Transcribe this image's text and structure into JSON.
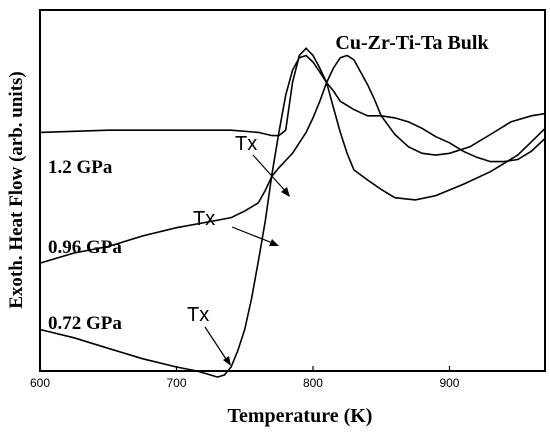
{
  "chart_data": {
    "type": "line",
    "title": "Cu-Zr-Ti-Ta  Bulk",
    "xlabel": "Temperature (K)",
    "ylabel": "Exoth. Heat Flow (arb. units)",
    "xlim": [
      600,
      970
    ],
    "ylim": [
      0,
      1
    ],
    "x_ticks": [
      "600",
      "700",
      "800",
      "900"
    ],
    "y_ticks_shown": false,
    "grid": false,
    "legend": "none",
    "series": [
      {
        "name": "1.2 GPa",
        "points": [
          [
            600,
            0.661
          ],
          [
            650,
            0.667
          ],
          [
            700,
            0.667
          ],
          [
            740,
            0.667
          ],
          [
            760,
            0.661
          ],
          [
            770,
            0.652
          ],
          [
            775,
            0.652
          ],
          [
            780,
            0.667
          ],
          [
            785,
            0.799
          ],
          [
            790,
            0.874
          ],
          [
            795,
            0.894
          ],
          [
            800,
            0.874
          ],
          [
            805,
            0.839
          ],
          [
            810,
            0.799
          ],
          [
            815,
            0.73
          ],
          [
            820,
            0.661
          ],
          [
            825,
            0.603
          ],
          [
            830,
            0.557
          ],
          [
            840,
            0.529
          ],
          [
            850,
            0.503
          ],
          [
            860,
            0.48
          ],
          [
            875,
            0.474
          ],
          [
            890,
            0.486
          ],
          [
            910,
            0.517
          ],
          [
            930,
            0.552
          ],
          [
            950,
            0.598
          ],
          [
            960,
            0.635
          ],
          [
            970,
            0.672
          ]
        ]
      },
      {
        "name": "0.96 GPa",
        "points": [
          [
            600,
            0.299
          ],
          [
            625,
            0.327
          ],
          [
            650,
            0.345
          ],
          [
            675,
            0.374
          ],
          [
            700,
            0.397
          ],
          [
            725,
            0.414
          ],
          [
            740,
            0.425
          ],
          [
            750,
            0.443
          ],
          [
            760,
            0.466
          ],
          [
            765,
            0.5
          ],
          [
            770,
            0.54
          ],
          [
            775,
            0.563
          ],
          [
            780,
            0.583
          ],
          [
            785,
            0.603
          ],
          [
            790,
            0.632
          ],
          [
            795,
            0.661
          ],
          [
            800,
            0.701
          ],
          [
            805,
            0.747
          ],
          [
            810,
            0.799
          ],
          [
            815,
            0.839
          ],
          [
            820,
            0.868
          ],
          [
            825,
            0.874
          ],
          [
            830,
            0.862
          ],
          [
            835,
            0.828
          ],
          [
            840,
            0.793
          ],
          [
            845,
            0.753
          ],
          [
            850,
            0.707
          ],
          [
            860,
            0.655
          ],
          [
            870,
            0.621
          ],
          [
            880,
            0.603
          ],
          [
            890,
            0.598
          ],
          [
            900,
            0.603
          ],
          [
            915,
            0.621
          ],
          [
            930,
            0.655
          ],
          [
            945,
            0.69
          ],
          [
            960,
            0.707
          ],
          [
            970,
            0.713
          ]
        ]
      },
      {
        "name": "0.72 GPa",
        "points": [
          [
            600,
            0.115
          ],
          [
            625,
            0.092
          ],
          [
            650,
            0.063
          ],
          [
            675,
            0.034
          ],
          [
            700,
            0.011
          ],
          [
            715,
            0.0
          ],
          [
            725,
            -0.011
          ],
          [
            730,
            -0.017
          ],
          [
            735,
            -0.011
          ],
          [
            740,
            0.011
          ],
          [
            745,
            0.057
          ],
          [
            750,
            0.115
          ],
          [
            755,
            0.201
          ],
          [
            760,
            0.305
          ],
          [
            765,
            0.414
          ],
          [
            770,
            0.546
          ],
          [
            775,
            0.661
          ],
          [
            780,
            0.764
          ],
          [
            785,
            0.833
          ],
          [
            790,
            0.868
          ],
          [
            795,
            0.874
          ],
          [
            800,
            0.856
          ],
          [
            805,
            0.828
          ],
          [
            810,
            0.799
          ],
          [
            815,
            0.776
          ],
          [
            820,
            0.747
          ],
          [
            830,
            0.724
          ],
          [
            840,
            0.707
          ],
          [
            850,
            0.707
          ],
          [
            860,
            0.701
          ],
          [
            870,
            0.69
          ],
          [
            880,
            0.672
          ],
          [
            890,
            0.649
          ],
          [
            900,
            0.632
          ],
          [
            910,
            0.609
          ],
          [
            920,
            0.592
          ],
          [
            930,
            0.58
          ],
          [
            940,
            0.58
          ],
          [
            950,
            0.586
          ],
          [
            960,
            0.609
          ],
          [
            970,
            0.644
          ]
        ]
      }
    ],
    "annotations": [
      {
        "text": "1.2 GPa"
      },
      {
        "text": "0.96 GPa"
      },
      {
        "text": "0.72 GPa"
      },
      {
        "text": "Tx"
      },
      {
        "text": "Tx"
      },
      {
        "text": "Tx"
      }
    ]
  }
}
